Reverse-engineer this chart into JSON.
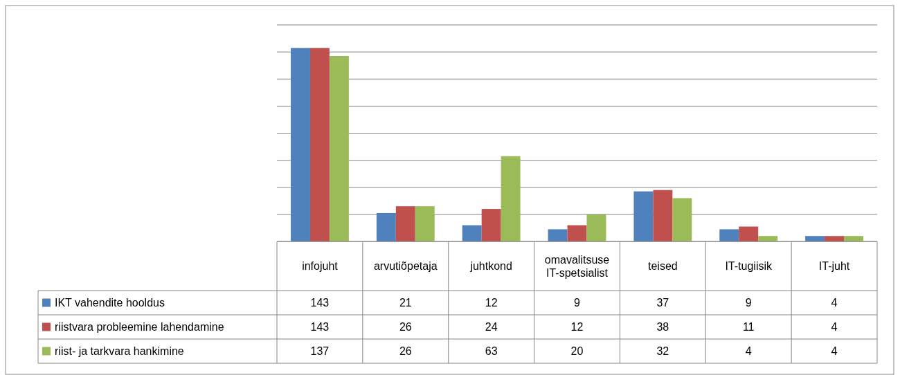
{
  "chart_data": {
    "type": "bar",
    "categories": [
      "infojuht",
      "arvutiõpetaja",
      "juhtkond",
      "omavalitsuse IT-spetsialist",
      "teised",
      "IT-tugiisik",
      "IT-juht"
    ],
    "series": [
      {
        "name": "IKT vahendite hooldus",
        "color": "#4f81bd",
        "values": [
          143,
          21,
          12,
          9,
          37,
          9,
          4
        ]
      },
      {
        "name": "riistvara probleemine lahendamine",
        "color": "#c0504d",
        "values": [
          143,
          26,
          24,
          12,
          38,
          11,
          4
        ]
      },
      {
        "name": "riist- ja tarkvara hankimine",
        "color": "#9bbb59",
        "values": [
          137,
          26,
          63,
          20,
          32,
          4,
          4
        ]
      }
    ],
    "ylim": [
      0,
      160
    ],
    "yticks": [
      {
        "value": 0,
        "label": null
      },
      {
        "value": 20,
        "label": null
      },
      {
        "value": 40,
        "label": null
      },
      {
        "value": 60,
        "label": null
      },
      {
        "value": 80,
        "label": null
      },
      {
        "value": 100,
        "label": null
      },
      {
        "value": 120,
        "label": null
      },
      {
        "value": 140,
        "label": null
      },
      {
        "value": 160,
        "label": null
      }
    ],
    "grid": "y",
    "tick_labels": "x",
    "data_labels": true,
    "legend": "bottom left"
  }
}
